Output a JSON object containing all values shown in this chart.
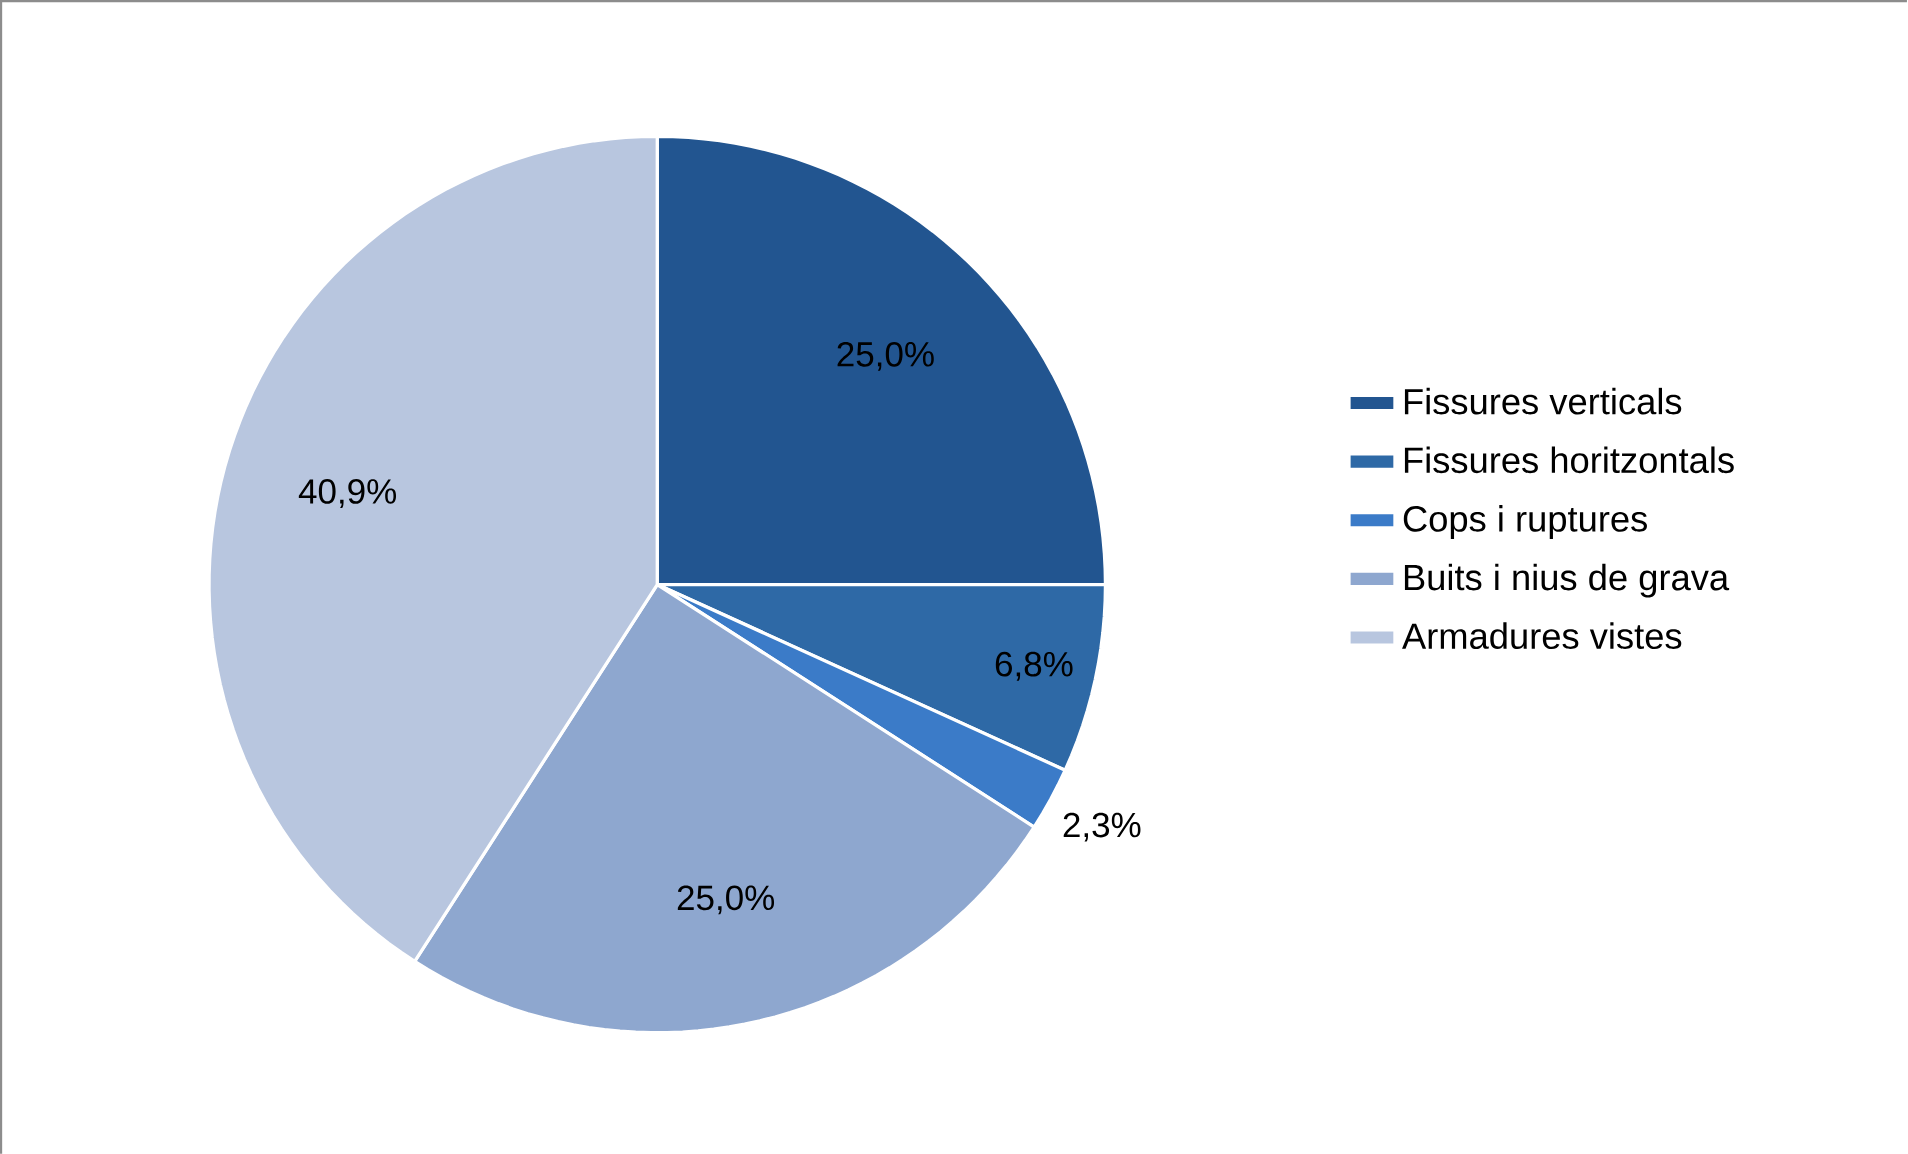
{
  "chart_data": {
    "type": "pie",
    "categories": [
      "Fissures verticals",
      "Fissures horitzontals",
      "Cops i ruptures",
      "Buits i nius de grava",
      "Armadures vistes"
    ],
    "values": [
      25.0,
      6.8,
      2.3,
      25.0,
      40.9
    ],
    "colors": [
      "#225590",
      "#2e69a6",
      "#3b7bc8",
      "#8ea7cf",
      "#b8c6df"
    ],
    "value_labels": [
      "25,0%",
      "6,8%",
      "2,3%",
      "25,0%",
      "40,9%"
    ],
    "legend": "right"
  }
}
